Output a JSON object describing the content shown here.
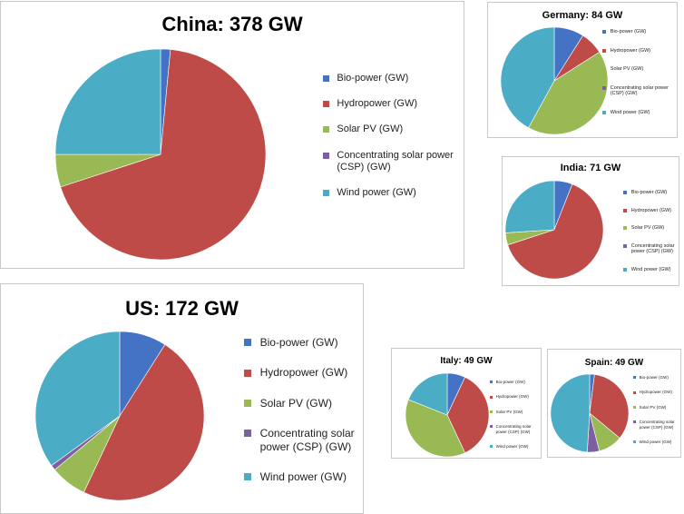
{
  "chart_data": [
    {
      "id": "china",
      "type": "pie",
      "title": "China: 378 GW",
      "legend_position": "right",
      "labels": [
        "Bio-power (GW)",
        "Hydropower (GW)",
        "Solar PV (GW)",
        "Concentrating solar power (CSP) (GW)",
        "Wind power (GW)"
      ],
      "values": [
        1.5,
        68.5,
        5.0,
        0.0,
        25.0
      ],
      "colors": [
        "#4472c4",
        "#be4b48",
        "#98b954",
        "#7d60a0",
        "#4bacc6"
      ]
    },
    {
      "id": "germany",
      "type": "pie",
      "title": "Germany: 84 GW",
      "legend_position": "right",
      "labels": [
        "Bio-power (GW)",
        "Hydropower (GW)",
        "Solar PV (GW)",
        "Concentrating solar power (CSP) (GW)",
        "Wind power (GW)"
      ],
      "values": [
        9.0,
        7.0,
        42.0,
        0.0,
        42.0
      ],
      "colors": [
        "#4472c4",
        "#be4b48",
        "#98b954",
        "#7d60a0",
        "#4bacc6"
      ]
    },
    {
      "id": "india",
      "type": "pie",
      "title": "India: 71 GW",
      "legend_position": "right",
      "labels": [
        "Bio-power (GW)",
        "Hydropower (GW)",
        "Solar PV (GW)",
        "Concentrating solar power (CSP) (GW)",
        "Wind power (GW)"
      ],
      "values": [
        6.0,
        64.0,
        4.0,
        0.0,
        26.0
      ],
      "colors": [
        "#4472c4",
        "#be4b48",
        "#98b954",
        "#7d60a0",
        "#4bacc6"
      ]
    },
    {
      "id": "us",
      "type": "pie",
      "title": "US: 172 GW",
      "legend_position": "right",
      "labels": [
        "Bio-power (GW)",
        "Hydropower (GW)",
        "Solar PV (GW)",
        "Concentrating solar power (CSP) (GW)",
        "Wind power (GW)"
      ],
      "values": [
        9.0,
        48.0,
        7.0,
        1.0,
        35.0
      ],
      "colors": [
        "#4472c4",
        "#be4b48",
        "#98b954",
        "#7d60a0",
        "#4bacc6"
      ]
    },
    {
      "id": "italy",
      "type": "pie",
      "title": "Italy: 49 GW",
      "legend_position": "right",
      "labels": [
        "Bio-power (GW)",
        "Hydropower (GW)",
        "Solar PV (GW)",
        "Concentrating solar power (CSP) (GW)",
        "Wind power (GW)"
      ],
      "values": [
        7.0,
        36.0,
        38.0,
        0.0,
        19.0
      ],
      "colors": [
        "#4472c4",
        "#be4b48",
        "#98b954",
        "#7d60a0",
        "#4bacc6"
      ]
    },
    {
      "id": "spain",
      "type": "pie",
      "title": "Spain: 49 GW",
      "legend_position": "right",
      "labels": [
        "Bio-power (GW)",
        "Hydropower (GW)",
        "Solar PV (GW)",
        "Concentrating solar power (CSP) (GW)",
        "Wind power (GW)"
      ],
      "values": [
        2.0,
        34.0,
        10.0,
        5.0,
        49.0
      ],
      "colors": [
        "#4472c4",
        "#be4b48",
        "#98b954",
        "#7d60a0",
        "#4bacc6"
      ]
    }
  ]
}
